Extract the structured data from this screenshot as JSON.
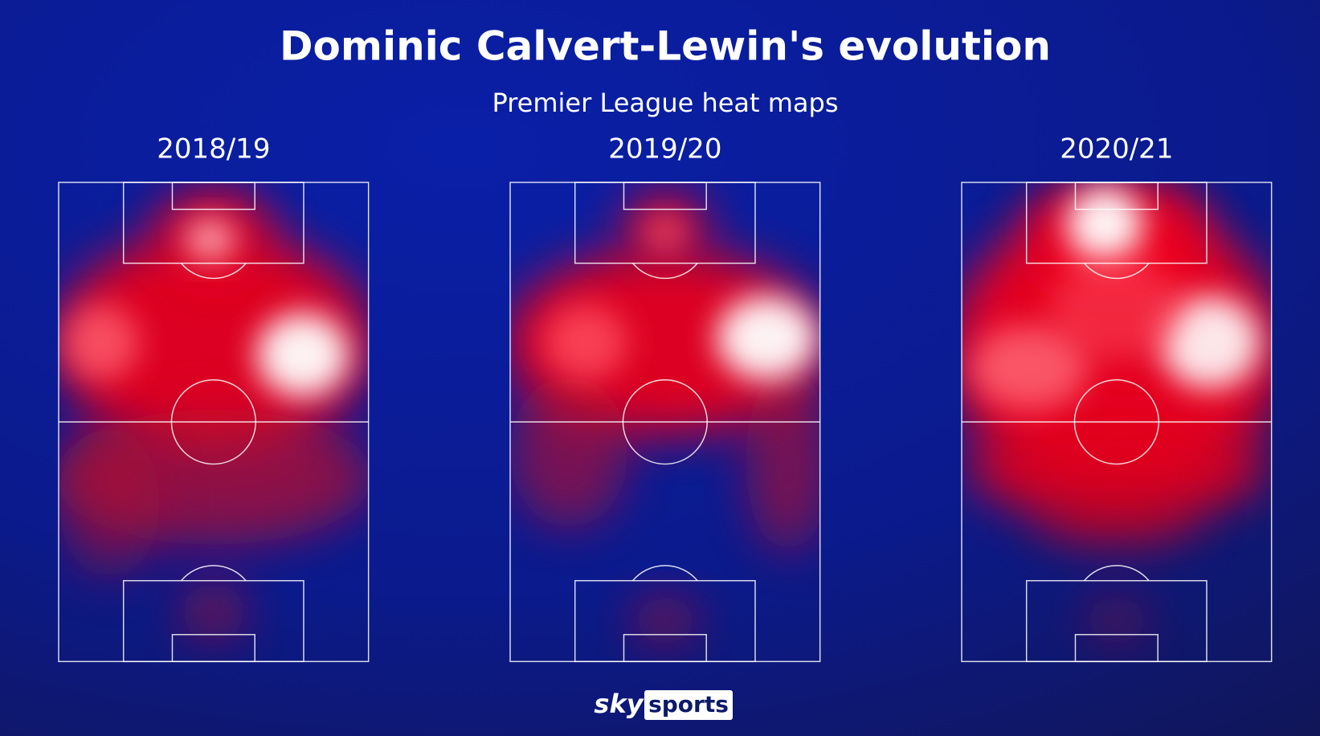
{
  "title": "Dominic Calvert-Lewin's evolution",
  "subtitle": "Premier League heat maps",
  "panels": [
    {
      "label": "2018/19"
    },
    {
      "label": "2019/20"
    },
    {
      "label": "2020/21"
    }
  ],
  "logo": {
    "brand": "sky",
    "product": "sports"
  }
}
